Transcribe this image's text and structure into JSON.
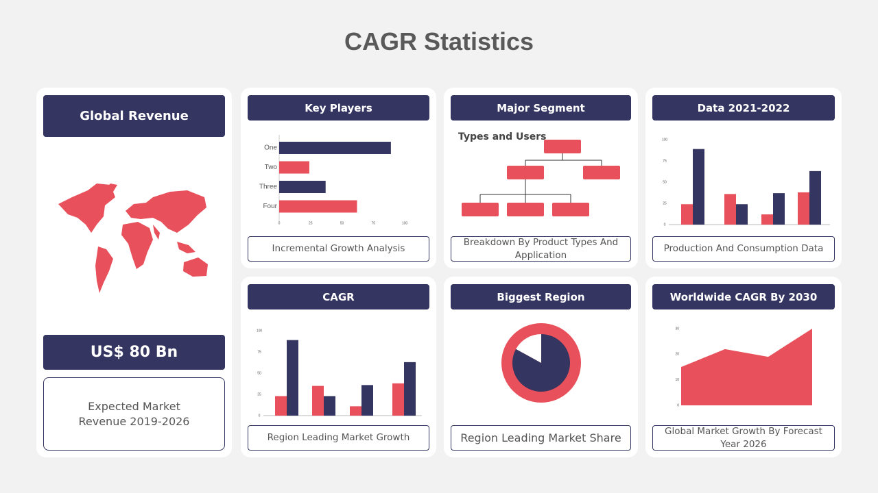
{
  "header": {
    "title": "CAGR Statistics"
  },
  "revenue": {
    "title": "Global Revenue",
    "amount": "US$ 80 Bn",
    "caption": "Expected Market Revenue 2019-2026"
  },
  "panels": [
    {
      "title": "Key Players",
      "caption": "Incremental Growth Analysis"
    },
    {
      "title": "Major Segment",
      "subtitle": "Types and Users",
      "caption": "Breakdown By Product Types And Application"
    },
    {
      "title": "Data 2021-2022",
      "caption": "Production And Consumption Data"
    },
    {
      "title": "CAGR",
      "caption": "Region Leading Market Growth"
    },
    {
      "title": "Biggest Region",
      "caption": "Region Leading Market Share"
    },
    {
      "title": "Worldwide CAGR By 2030",
      "caption": "Global Market Growth By Forecast Year 2026"
    }
  ],
  "chart_data": [
    {
      "type": "hbar",
      "categories": [
        "One",
        "Two",
        "Three",
        "Four"
      ],
      "values": [
        89,
        24,
        37,
        62
      ],
      "colors": [
        "#343560",
        "#e8505b",
        "#343560",
        "#e8505b"
      ],
      "xlim": [
        0,
        100
      ],
      "xticks": [
        0,
        25,
        50,
        75,
        100
      ]
    },
    {
      "type": "grouped_bar",
      "series": [
        {
          "color": "#e8505b",
          "values": [
            24,
            36,
            12,
            38
          ]
        },
        {
          "color": "#343560",
          "values": [
            89,
            24,
            37,
            63
          ]
        }
      ],
      "ylim": [
        0,
        100
      ],
      "yticks": [
        0,
        25,
        50,
        75,
        100
      ]
    },
    {
      "type": "grouped_bar",
      "series": [
        {
          "color": "#e8505b",
          "values": [
            23,
            35,
            11,
            38
          ]
        },
        {
          "color": "#343560",
          "values": [
            89,
            23,
            36,
            63
          ]
        }
      ],
      "ylim": [
        0,
        100
      ],
      "yticks": [
        0,
        25,
        50,
        75,
        100
      ]
    },
    {
      "type": "pie",
      "values": [
        83,
        17
      ],
      "colors": [
        "#343560",
        "#ffffff"
      ],
      "ring_color": "#e8505b"
    },
    {
      "type": "area",
      "values": [
        15,
        22,
        19,
        30
      ],
      "color": "#e8505b",
      "ylim": [
        0,
        30
      ],
      "yticks": [
        0,
        10,
        20,
        30
      ]
    }
  ]
}
